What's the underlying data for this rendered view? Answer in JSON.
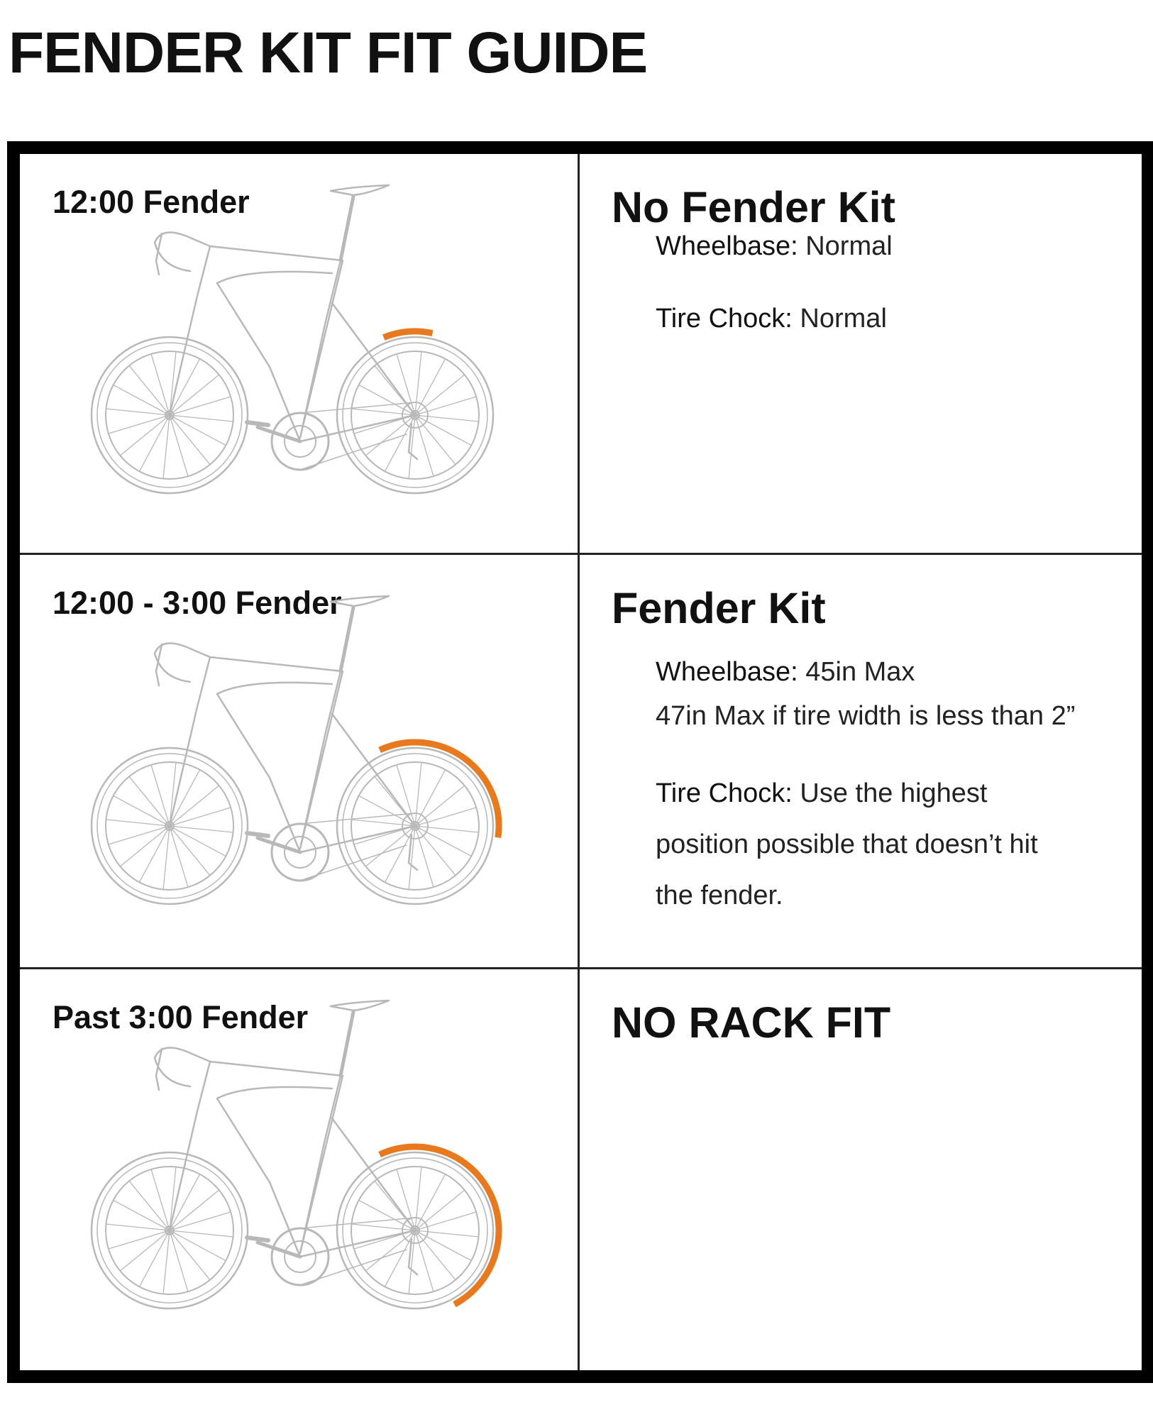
{
  "title": "FENDER KIT FIT GUIDE",
  "colors": {
    "fender": "#e8791f",
    "bike_line": "#b8b8b8",
    "border": "#000000"
  },
  "rows": [
    {
      "fender_label": "12:00 Fender",
      "fender_coverage": "12:00",
      "kit_title": "No Fender Kit",
      "wheelbase_label": "Wheelbase:",
      "wheelbase_value": "Normal",
      "tire_chock_label": "Tire Chock:",
      "tire_chock_value": "Normal"
    },
    {
      "fender_label": "12:00 - 3:00 Fender",
      "fender_coverage": "12:00-3:00",
      "kit_title": "Fender Kit",
      "wheelbase_label": "Wheelbase:",
      "wheelbase_value": "45in Max",
      "wheelbase_note": "47in Max if tire width is less than 2”",
      "tire_chock_label": "Tire Chock:",
      "tire_chock_value_line1": "Use the highest",
      "tire_chock_value_line2": "position possible that doesn’t hit",
      "tire_chock_value_line3": "the fender."
    },
    {
      "fender_label": "Past 3:00 Fender",
      "fender_coverage": "past 3:00",
      "kit_title": "NO RACK FIT"
    }
  ]
}
